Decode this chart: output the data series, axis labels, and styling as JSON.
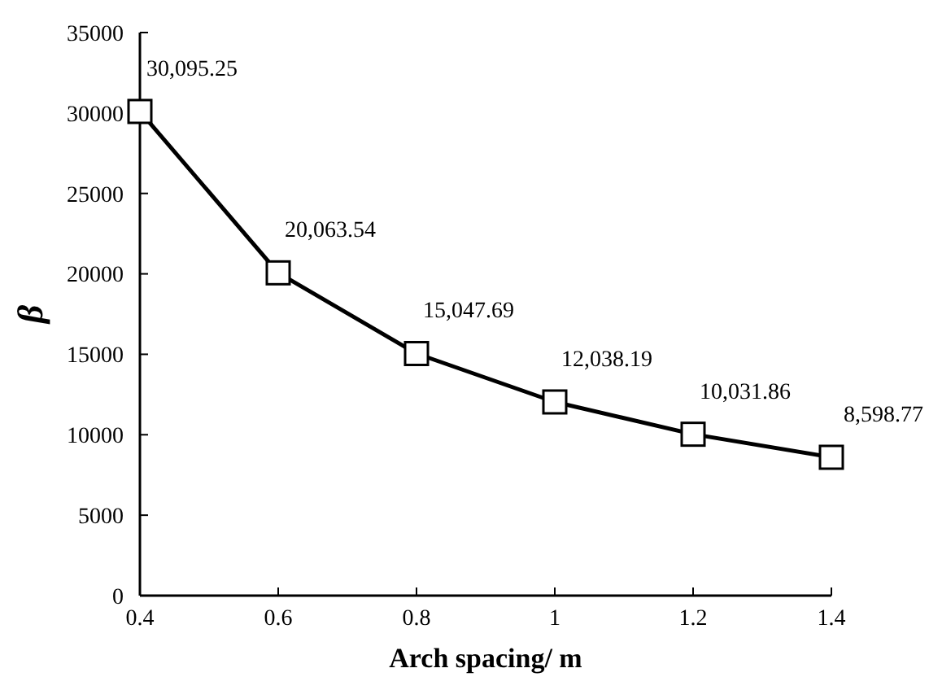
{
  "chart_data": {
    "type": "line",
    "xlabel": "Arch spacing/ m",
    "ylabel": "β",
    "x": [
      0.4,
      0.6,
      0.8,
      1,
      1.2,
      1.4
    ],
    "series": [
      {
        "color": "#000000",
        "values": [
          30095.25,
          20063.54,
          15047.69,
          12038.19,
          10031.86,
          8598.77
        ],
        "value_labels": [
          "30,095.25",
          "20,063.54",
          "15,047.69",
          "12,038.19",
          "10,031.86",
          "8,598.77"
        ]
      }
    ],
    "xlim": [
      0.4,
      1.4
    ],
    "xticks": [
      0.4,
      0.6,
      0.8,
      1,
      1.2,
      1.4
    ],
    "ylim": [
      0,
      35000
    ],
    "yticks": [
      0,
      5000,
      10000,
      15000,
      20000,
      25000,
      30000,
      35000
    ],
    "marker": "square",
    "line_style": "solid",
    "grid": false
  }
}
